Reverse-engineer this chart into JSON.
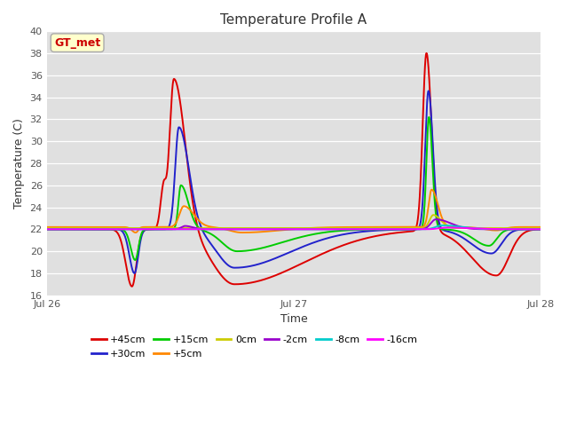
{
  "title": "Temperature Profile A",
  "xlabel": "Time",
  "ylabel": "Temperature (C)",
  "ylim": [
    16,
    40
  ],
  "yticks": [
    16,
    18,
    20,
    22,
    24,
    26,
    28,
    30,
    32,
    34,
    36,
    38,
    40
  ],
  "background_color": "#e0e0e0",
  "fig_color": "#ffffff",
  "annotation_text": "GT_met",
  "annotation_color": "#cc0000",
  "annotation_bg": "#ffffcc",
  "annotation_border": "#aaaaaa",
  "series_order": [
    "+45cm",
    "+30cm",
    "+15cm",
    "+5cm",
    "0cm",
    "-2cm",
    "-8cm",
    "-16cm"
  ],
  "series_colors": {
    "+45cm": "#dd0000",
    "+30cm": "#2222cc",
    "+15cm": "#00cc00",
    "+5cm": "#ff8800",
    "0cm": "#cccc00",
    "-2cm": "#9900cc",
    "-8cm": "#00cccc",
    "-16cm": "#ff00ff"
  },
  "series_lw": 1.4,
  "xtick_positions": [
    0,
    1,
    2
  ],
  "xtick_labels": [
    "Jul 26",
    "Jul 27",
    "Jul 28"
  ],
  "legend_ncol_row1": 6,
  "legend_ncol_row2": 2
}
